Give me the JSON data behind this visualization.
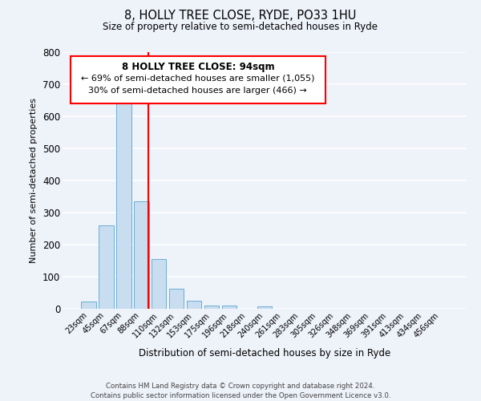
{
  "title": "8, HOLLY TREE CLOSE, RYDE, PO33 1HU",
  "subtitle": "Size of property relative to semi-detached houses in Ryde",
  "xlabel": "Distribution of semi-detached houses by size in Ryde",
  "ylabel": "Number of semi-detached properties",
  "bin_labels": [
    "23sqm",
    "45sqm",
    "67sqm",
    "88sqm",
    "110sqm",
    "132sqm",
    "153sqm",
    "175sqm",
    "196sqm",
    "218sqm",
    "240sqm",
    "261sqm",
    "283sqm",
    "305sqm",
    "326sqm",
    "348sqm",
    "369sqm",
    "391sqm",
    "413sqm",
    "434sqm",
    "456sqm"
  ],
  "bar_values": [
    22,
    260,
    660,
    335,
    155,
    62,
    25,
    10,
    10,
    0,
    8,
    0,
    0,
    0,
    0,
    0,
    0,
    0,
    0,
    0,
    0
  ],
  "bar_color": "#c9ddf0",
  "bar_edge_color": "#6aaed6",
  "property_line_x": 3.4,
  "property_line_color": "red",
  "ylim": [
    0,
    800
  ],
  "yticks": [
    0,
    100,
    200,
    300,
    400,
    500,
    600,
    700,
    800
  ],
  "annotation_title": "8 HOLLY TREE CLOSE: 94sqm",
  "annotation_line1": "← 69% of semi-detached houses are smaller (1,055)",
  "annotation_line2": "30% of semi-detached houses are larger (466) →",
  "footer_line1": "Contains HM Land Registry data © Crown copyright and database right 2024.",
  "footer_line2": "Contains public sector information licensed under the Open Government Licence v3.0.",
  "background_color": "#eef2f9",
  "grid_color": "white"
}
